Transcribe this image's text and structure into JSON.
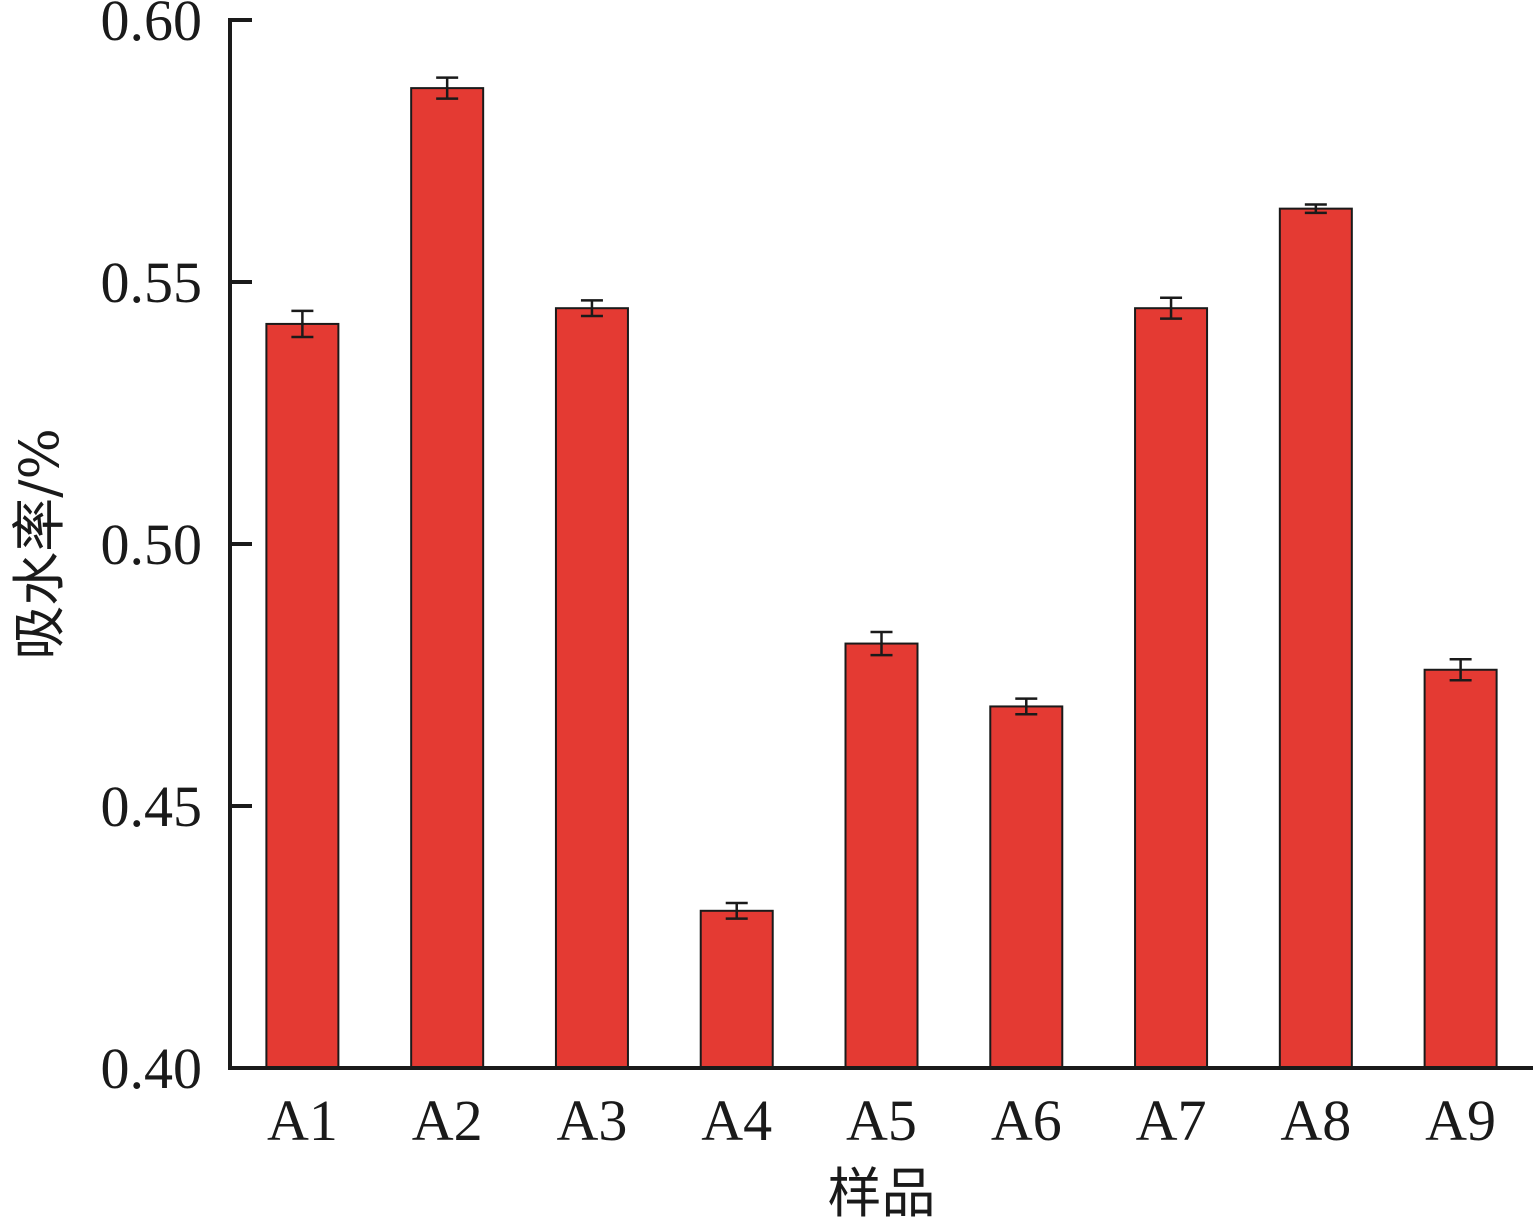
{
  "chart_data": {
    "type": "bar",
    "title": "",
    "xlabel": "样品",
    "ylabel": "吸水率/%",
    "categories": [
      "A1",
      "A2",
      "A3",
      "A4",
      "A5",
      "A6",
      "A7",
      "A8",
      "A9"
    ],
    "values": [
      0.542,
      0.587,
      0.545,
      0.43,
      0.481,
      0.469,
      0.545,
      0.564,
      0.476
    ],
    "errors": [
      0.0025,
      0.002,
      0.0015,
      0.0015,
      0.0022,
      0.0015,
      0.002,
      0.0008,
      0.002
    ],
    "ylim": [
      0.4,
      0.6
    ],
    "yticks": [
      "0.40",
      "0.45",
      "0.50",
      "0.55",
      "0.60"
    ],
    "bar_color": "#e43a33",
    "grid": false,
    "legend": "none"
  }
}
